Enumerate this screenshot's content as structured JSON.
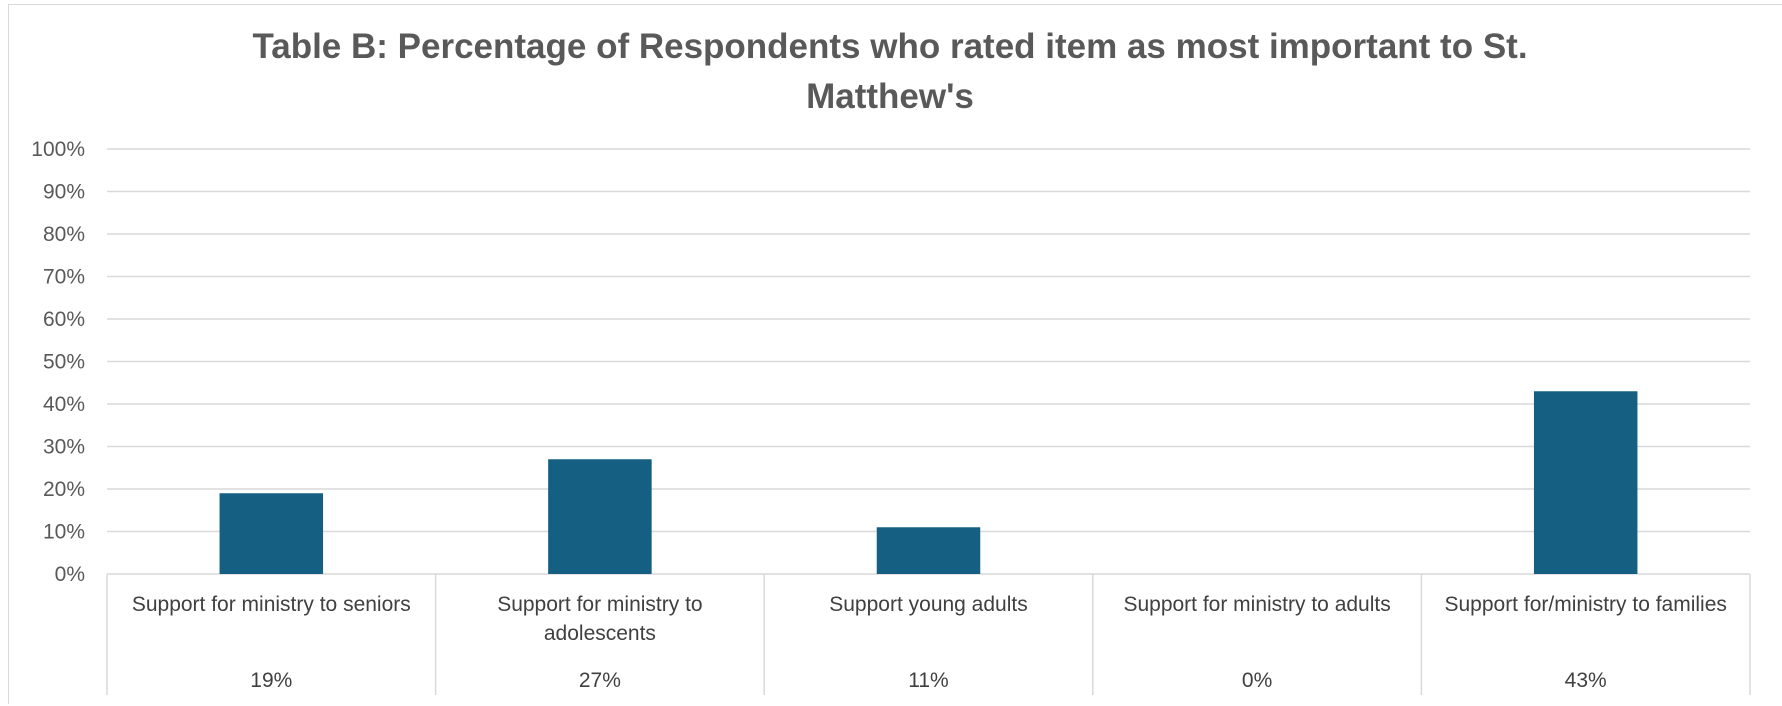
{
  "chart_data": {
    "type": "bar",
    "title": "Table B: Percentage of Respondents who rated item as most important to St. Matthew's",
    "categories": [
      "Support for ministry to seniors",
      "Support for ministry to adolescents",
      "Support young adults",
      "Support for ministry to adults",
      "Support for/ministry to families"
    ],
    "category_label_lines": [
      [
        "Support for ministry to seniors"
      ],
      [
        "Support for ministry to",
        "adolescents"
      ],
      [
        "Support young adults"
      ],
      [
        "Support for ministry to adults"
      ],
      [
        "Support for/ministry to families"
      ]
    ],
    "values": [
      19,
      27,
      11,
      0,
      43
    ],
    "value_labels": [
      "19%",
      "27%",
      "11%",
      "0%",
      "43%"
    ],
    "ylim": [
      0,
      100
    ],
    "y_ticks": [
      0,
      10,
      20,
      30,
      40,
      50,
      60,
      70,
      80,
      90,
      100
    ],
    "y_tick_labels": [
      "0%",
      "10%",
      "20%",
      "30%",
      "40%",
      "50%",
      "60%",
      "70%",
      "80%",
      "90%",
      "100%"
    ],
    "grid": true,
    "data_table_below": true,
    "bar_color": "#156082",
    "grid_color": "#d9d9d9"
  }
}
